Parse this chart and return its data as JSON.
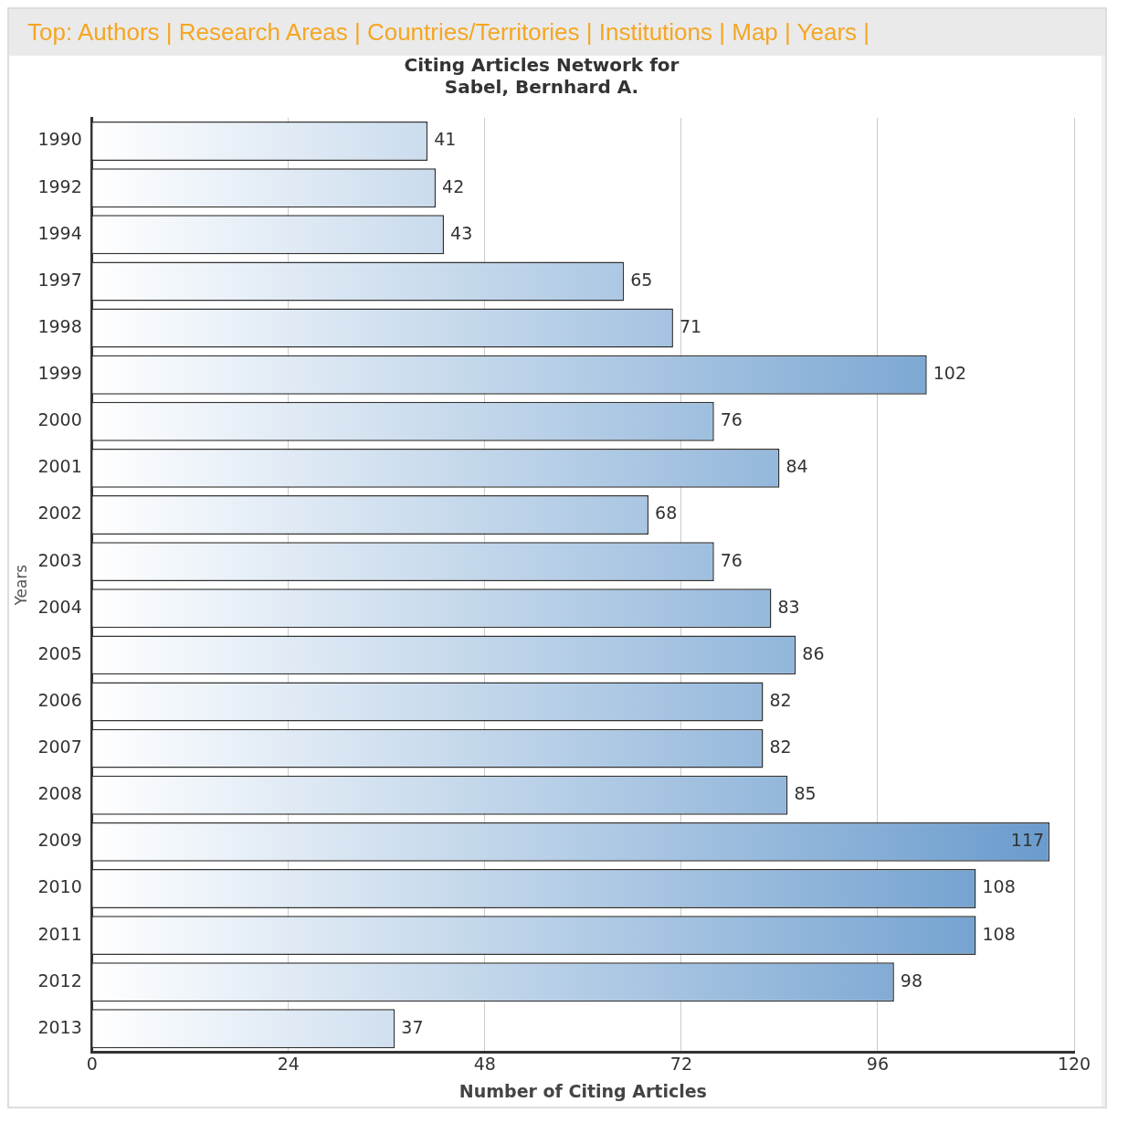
{
  "chart_data": {
    "type": "bar",
    "orientation": "horizontal",
    "title": [
      "Citing Articles Network for",
      "Sabel, Bernhard A."
    ],
    "annotations": [
      "Top: Authors | Research Areas | Countries/Territories | Institutions | Map | Years |"
    ],
    "xlabel": "Number of Citing Articles",
    "ylabel": "Years",
    "categories": [
      "1990",
      "1992",
      "1994",
      "1997",
      "1998",
      "1999",
      "2000",
      "2001",
      "2002",
      "2003",
      "2004",
      "2005",
      "2006",
      "2007",
      "2008",
      "2009",
      "2010",
      "2011",
      "2012",
      "2013"
    ],
    "values": [
      41,
      42,
      43,
      65,
      71,
      102,
      76,
      84,
      68,
      76,
      83,
      86,
      82,
      82,
      85,
      117,
      108,
      108,
      98,
      37
    ],
    "color": "#6699cc",
    "xlim": [
      0,
      120
    ],
    "xticks": [
      0,
      24,
      48,
      72,
      96,
      120
    ],
    "grid": "x",
    "data_labels": true,
    "legend": false
  }
}
